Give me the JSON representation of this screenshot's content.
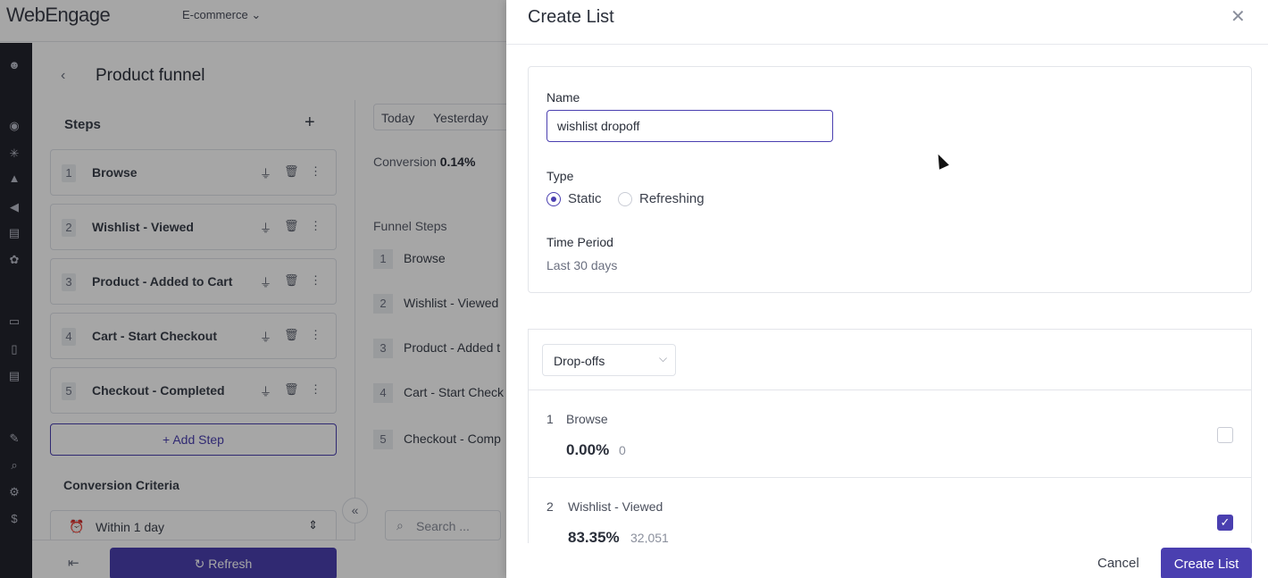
{
  "app": {
    "logo": "WebEngage",
    "project": "E-commerce",
    "page_title": "Product funnel"
  },
  "steps_panel": {
    "title": "Steps",
    "steps": [
      {
        "num": "1",
        "label": "Browse"
      },
      {
        "num": "2",
        "label": "Wishlist - Viewed"
      },
      {
        "num": "3",
        "label": "Product - Added to Cart"
      },
      {
        "num": "4",
        "label": "Cart - Start Checkout"
      },
      {
        "num": "5",
        "label": "Checkout - Completed"
      }
    ],
    "add_step": "Add Step",
    "conversion_criteria": "Conversion Criteria",
    "within": "Within 1 day",
    "refresh": "Refresh"
  },
  "funnel_area": {
    "date_today": "Today",
    "date_yesterday": "Yesterday",
    "conversion_label": "Conversion",
    "conversion_value": "0.14%",
    "funnel_steps_title": "Funnel Steps",
    "funnel_steps": [
      {
        "num": "1",
        "label": "Browse"
      },
      {
        "num": "2",
        "label": "Wishlist - Viewed"
      },
      {
        "num": "3",
        "label": "Product - Added t"
      },
      {
        "num": "4",
        "label": "Cart - Start Check"
      },
      {
        "num": "5",
        "label": "Checkout - Comp"
      }
    ],
    "search_placeholder": "Search ..."
  },
  "drawer": {
    "title": "Create List",
    "name_label": "Name",
    "name_value": "wishlist dropoff",
    "type_label": "Type",
    "type_options": [
      {
        "label": "Static",
        "selected": true
      },
      {
        "label": "Refreshing",
        "selected": false
      }
    ],
    "time_period_label": "Time Period",
    "time_period_value": "Last 30 days",
    "list_select": "Drop-offs",
    "rows": [
      {
        "num": "1",
        "name": "Browse",
        "pct": "0.00%",
        "count": "0",
        "checked": false
      },
      {
        "num": "2",
        "name": "Wishlist - Viewed",
        "pct": "83.35%",
        "count": "32,051",
        "checked": true
      }
    ],
    "cancel": "Cancel",
    "create": "Create List"
  },
  "colors": {
    "accent": "#4a3fb0",
    "rail": "#23242d"
  }
}
